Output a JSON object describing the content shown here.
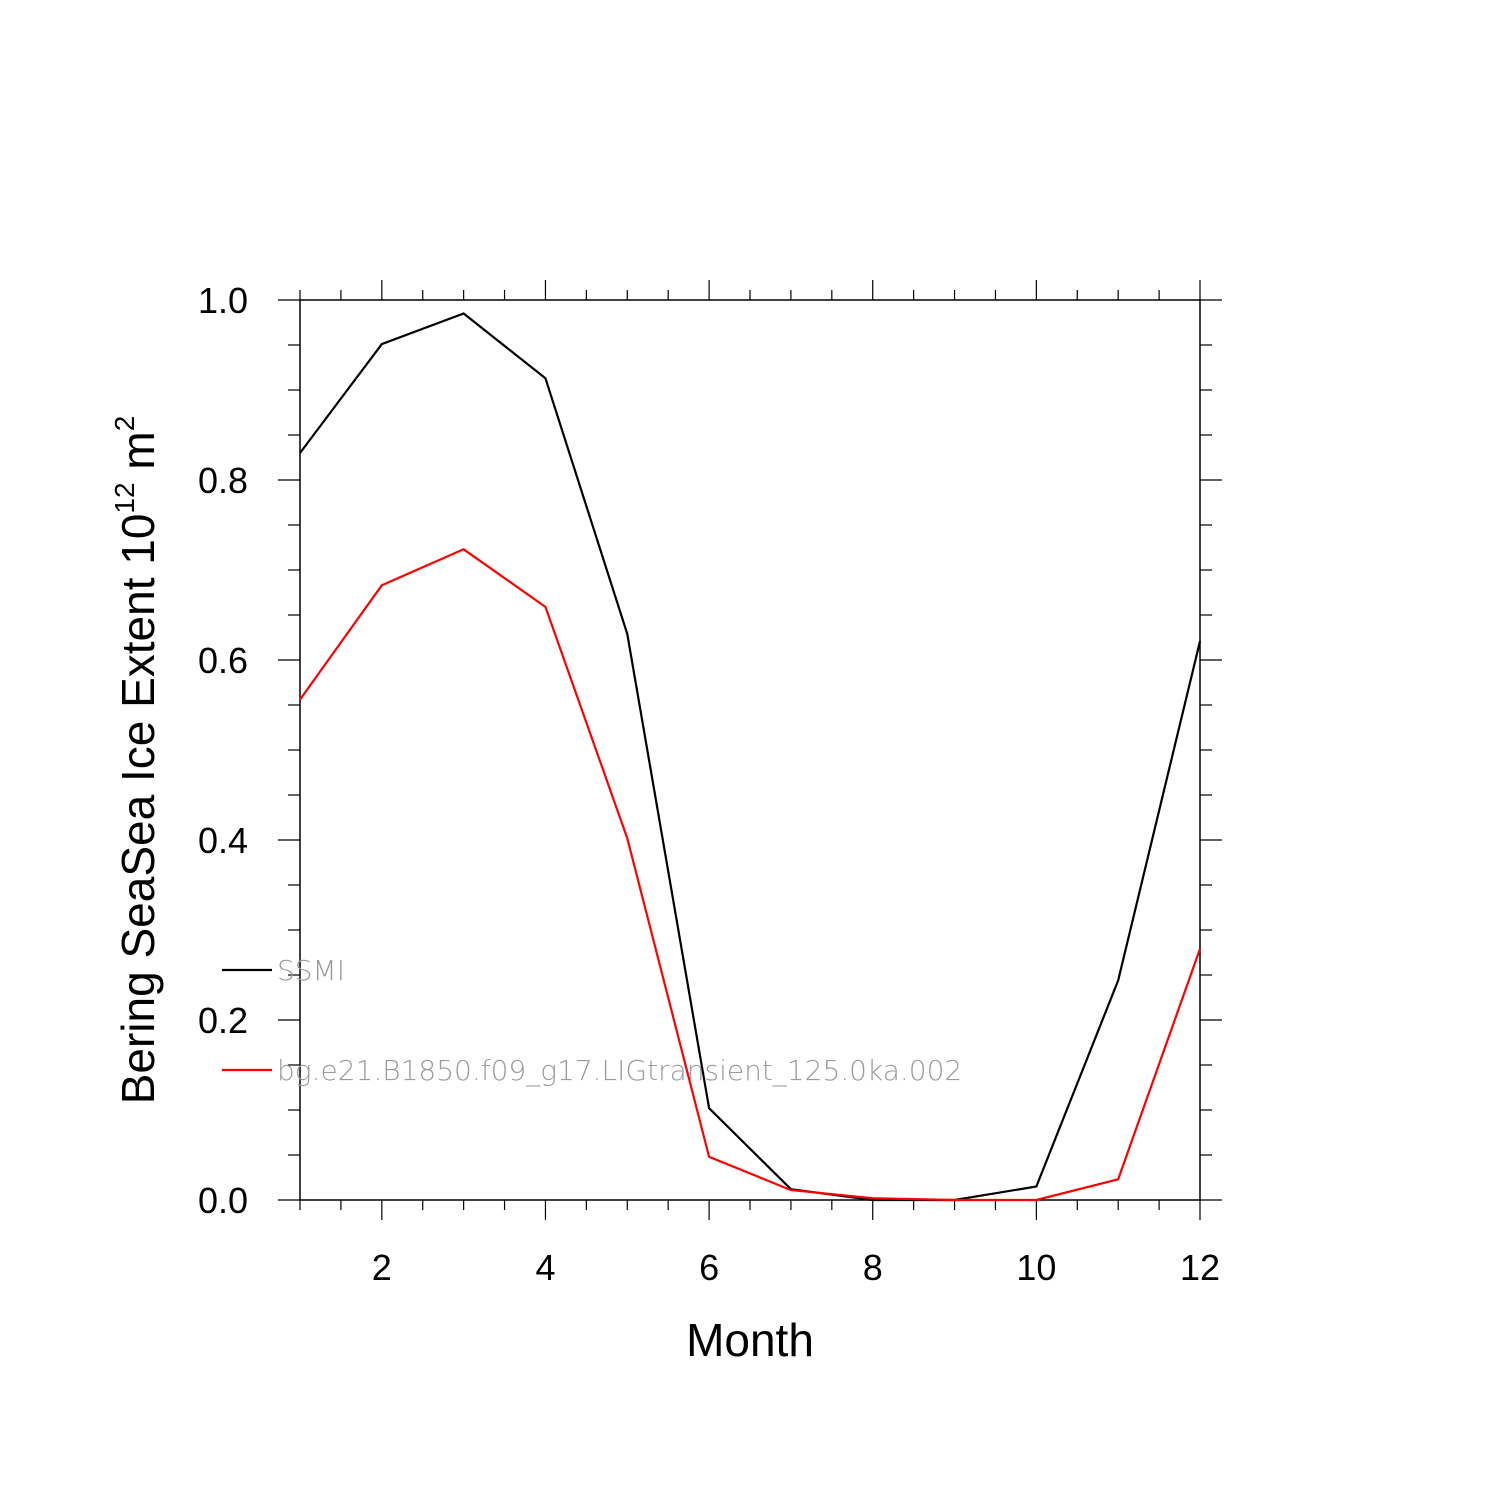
{
  "chart_data": {
    "type": "line",
    "title": "",
    "xlabel": "Month",
    "ylabel": {
      "prefix": "Bering SeaSea Ice Extent 10",
      "superscript": "12",
      "unit": " m",
      "unit_superscript": "2"
    },
    "xlim": [
      1,
      12
    ],
    "ylim": [
      0.0,
      1.0
    ],
    "x": [
      1,
      2,
      3,
      4,
      5,
      6,
      7,
      8,
      9,
      10,
      11,
      12
    ],
    "xticks": [
      2,
      4,
      6,
      8,
      10,
      12
    ],
    "xtick_labels": [
      "2",
      "4",
      "6",
      "8",
      "10",
      "12"
    ],
    "yticks": [
      0.0,
      0.2,
      0.4,
      0.6,
      0.8,
      1.0
    ],
    "ytick_labels": [
      "0.0",
      "0.2",
      "0.4",
      "0.6",
      "0.8",
      "1.0"
    ],
    "grid": false,
    "legend_position": "lower-left inside plot",
    "series": [
      {
        "name": "SSMI",
        "color": "#000000",
        "values": [
          0.83,
          0.951,
          0.985,
          0.913,
          0.629,
          0.102,
          0.012,
          0.0,
          0.0,
          0.015,
          0.244,
          0.621
        ]
      },
      {
        "name": "bg.e21.B1850.f09_g17.LIGtransient_125.0ka.002",
        "color": "#ff0000",
        "values": [
          0.556,
          0.683,
          0.723,
          0.659,
          0.402,
          0.048,
          0.011,
          0.002,
          0.0,
          0.0,
          0.023,
          0.279
        ]
      }
    ]
  }
}
